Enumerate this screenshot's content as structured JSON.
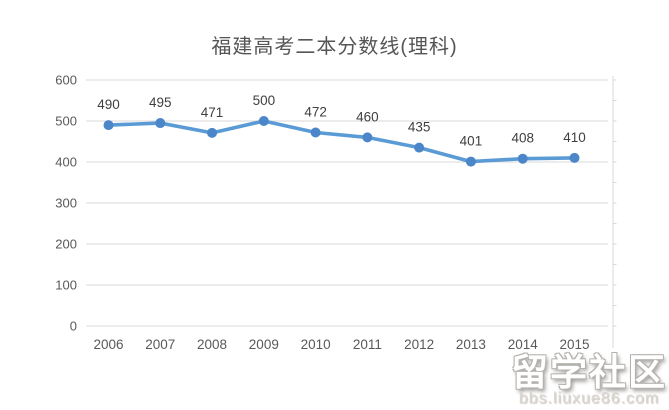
{
  "chart_data": {
    "type": "line",
    "title": "福建高考二本分数线(理科)",
    "categories": [
      "2006",
      "2007",
      "2008",
      "2009",
      "2010",
      "2011",
      "2012",
      "2013",
      "2014",
      "2015"
    ],
    "values": [
      490,
      495,
      471,
      500,
      472,
      460,
      435,
      401,
      408,
      410
    ],
    "xlabel": "",
    "ylabel": "",
    "ylim": [
      0,
      600
    ],
    "yticks": [
      0,
      100,
      200,
      300,
      400,
      500,
      600
    ],
    "grid": "horizontal",
    "legend": "none",
    "data_labels": true,
    "line_color": "#5b9bd5",
    "marker_color": "#4a86c8",
    "gridline_color": "#d9d9d9",
    "axis_label_color": "#595959",
    "data_label_color": "#3f3f3f",
    "title_color": "#555555"
  },
  "watermark": {
    "site_name": "留学社区",
    "site_url": "bbs.liuxue86.com"
  }
}
